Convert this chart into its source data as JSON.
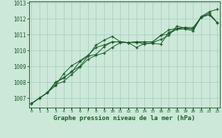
{
  "title": "Graphe pression niveau de la mer (hPa)",
  "background_color": "#cce8d8",
  "grid_color": "#aacfbe",
  "line_color": "#1a5c28",
  "x_ticks": [
    0,
    1,
    2,
    3,
    4,
    5,
    6,
    7,
    8,
    9,
    10,
    11,
    12,
    13,
    14,
    15,
    16,
    17,
    18,
    19,
    20,
    21,
    22,
    23
  ],
  "ylim": [
    1006.4,
    1013.1
  ],
  "yticks": [
    1007,
    1008,
    1009,
    1010,
    1011,
    1012,
    1013
  ],
  "series": [
    [
      1006.65,
      1007.0,
      1007.35,
      1007.8,
      1008.55,
      1009.05,
      1009.35,
      1009.7,
      1010.2,
      1010.35,
      1010.55,
      1010.55,
      1010.5,
      1010.5,
      1010.55,
      1010.55,
      1010.95,
      1011.05,
      1011.35,
      1011.45,
      1011.45,
      1012.1,
      1012.25,
      1011.75
    ],
    [
      1006.65,
      1007.0,
      1007.35,
      1007.85,
      1008.05,
      1008.5,
      1008.95,
      1009.45,
      1009.7,
      1009.85,
      1010.2,
      1010.5,
      1010.5,
      1010.2,
      1010.45,
      1010.45,
      1010.4,
      1011.15,
      1011.35,
      1011.35,
      1011.25,
      1012.1,
      1012.35,
      1011.75
    ],
    [
      1006.65,
      1007.0,
      1007.35,
      1008.0,
      1008.25,
      1008.7,
      1009.0,
      1009.65,
      1009.75,
      1010.25,
      1010.55,
      1010.55,
      1010.5,
      1010.55,
      1010.55,
      1010.55,
      1010.95,
      1011.3,
      1011.4,
      1011.45,
      1011.35,
      1012.1,
      1012.35,
      1011.75
    ],
    [
      1006.65,
      1007.0,
      1007.35,
      1008.0,
      1008.3,
      1008.65,
      1009.3,
      1009.65,
      1010.35,
      1010.65,
      1010.9,
      1010.55,
      1010.5,
      1010.55,
      1010.4,
      1010.5,
      1010.7,
      1010.95,
      1011.55,
      1011.4,
      1011.35,
      1012.15,
      1012.45,
      1012.6
    ]
  ]
}
